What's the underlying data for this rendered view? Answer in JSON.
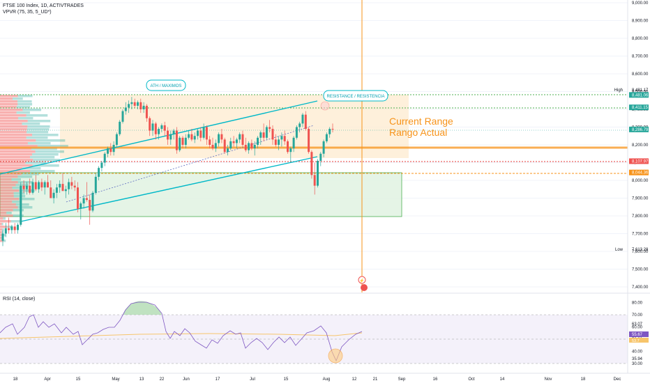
{
  "header": {
    "symbol_line": "FTSE 100 Index, 1D, ACTIVTRADES",
    "indicator_line": "VPVR (75, 35, 5_UD*)"
  },
  "rsi": {
    "label": "RSI (14, close)"
  },
  "annotations": {
    "ath": "ATH / MAXIMOS",
    "resistance": "RESISTANCE / RESISTENCIA",
    "current_range_en": "Current Range",
    "current_range_es": "Rango Actual"
  },
  "price_axis": {
    "ticks": [
      "9,000.00",
      "8,900.00",
      "8,800.00",
      "8,700.00",
      "8,600.00",
      "8,500.00",
      "8,400.00",
      "8,300.00",
      "8,200.00",
      "8,100.00",
      "8,000.00",
      "7,900.00",
      "7,800.00",
      "7,700.00",
      "7,600.00",
      "7,500.00",
      "7,400.00"
    ],
    "high_label": "High",
    "high_value": "8,481.17",
    "low_label": "Low",
    "low_value": "7,613.28",
    "badges": [
      "8,481.06",
      "8,411.15",
      "8,286.79",
      "8,107.97",
      "8,044.36"
    ]
  },
  "rsi_axis": {
    "ticks": [
      "80.00",
      "70.00",
      "60.00",
      "50.00",
      "40.00",
      "30.00"
    ],
    "labels": [
      "63.07",
      "55.67",
      "53.7",
      "35.94"
    ]
  },
  "time_axis": [
    "18",
    "Apr",
    "15",
    "May",
    "13",
    "22",
    "Jun",
    "17",
    "Jul",
    "15",
    "Aug",
    "12",
    "21",
    "Sep",
    "16",
    "Oct",
    "14",
    "Nov",
    "18",
    "Dec"
  ],
  "colors": {
    "up": "#26a69a",
    "down": "#ef5350",
    "trend": "#00b8c8",
    "orange": "#f7931a",
    "green_level": "#4caf50",
    "red_level": "#e53935",
    "range_fill": "#fde9cc",
    "lower_box_fill": "#e2f3e3",
    "rsi_fill": "#ede7f6"
  },
  "chart_data": {
    "type": "candlestick",
    "title": "FTSE 100 Index, 1D, ACTIVTRADES",
    "ylim": [
      7380,
      9010
    ],
    "candles": [
      [
        7660,
        7720,
        7630,
        7700
      ],
      [
        7700,
        7760,
        7680,
        7730
      ],
      [
        7730,
        7790,
        7700,
        7720
      ],
      [
        7720,
        7750,
        7700,
        7740
      ],
      [
        7740,
        7760,
        7700,
        7720
      ],
      [
        7720,
        7760,
        7700,
        7750
      ],
      [
        7750,
        7990,
        7740,
        7970
      ],
      [
        7970,
        8000,
        7930,
        7950
      ],
      [
        7950,
        7990,
        7920,
        7970
      ],
      [
        7970,
        8010,
        7920,
        7930
      ],
      [
        7930,
        8010,
        7920,
        7990
      ],
      [
        7990,
        8030,
        7940,
        7950
      ],
      [
        7950,
        8000,
        7930,
        7990
      ],
      [
        7990,
        8010,
        7940,
        7960
      ],
      [
        7960,
        8000,
        7920,
        7990
      ],
      [
        7990,
        8030,
        7960,
        7960
      ],
      [
        7960,
        8000,
        7910,
        7900
      ],
      [
        7900,
        7950,
        7870,
        7930
      ],
      [
        7930,
        7980,
        7900,
        7960
      ],
      [
        7960,
        8000,
        7930,
        7980
      ],
      [
        7980,
        8040,
        7950,
        7940
      ],
      [
        7940,
        7970,
        7900,
        7950
      ],
      [
        7950,
        8010,
        7920,
        7990
      ],
      [
        7990,
        8020,
        7950,
        7970
      ],
      [
        7970,
        8000,
        7940,
        7960
      ],
      [
        7960,
        7990,
        7820,
        7840
      ],
      [
        7840,
        7880,
        7780,
        7870
      ],
      [
        7870,
        7920,
        7840,
        7900
      ],
      [
        7900,
        7990,
        7880,
        7890
      ],
      [
        7890,
        7920,
        7750,
        7830
      ],
      [
        7830,
        7940,
        7820,
        7930
      ],
      [
        7930,
        8040,
        7920,
        8020
      ],
      [
        8020,
        8080,
        8000,
        8070
      ],
      [
        8070,
        8110,
        8050,
        8100
      ],
      [
        8100,
        8160,
        8080,
        8150
      ],
      [
        8150,
        8190,
        8130,
        8180
      ],
      [
        8180,
        8210,
        8140,
        8160
      ],
      [
        8160,
        8220,
        8140,
        8200
      ],
      [
        8200,
        8270,
        8190,
        8260
      ],
      [
        8260,
        8340,
        8250,
        8330
      ],
      [
        8330,
        8400,
        8320,
        8390
      ],
      [
        8390,
        8440,
        8370,
        8410
      ],
      [
        8410,
        8450,
        8380,
        8430
      ],
      [
        8430,
        8470,
        8400,
        8440
      ],
      [
        8440,
        8460,
        8410,
        8420
      ],
      [
        8420,
        8450,
        8400,
        8440
      ],
      [
        8440,
        8460,
        8380,
        8400
      ],
      [
        8400,
        8440,
        8380,
        8420
      ],
      [
        8420,
        8430,
        8330,
        8350
      ],
      [
        8350,
        8360,
        8250,
        8280
      ],
      [
        8280,
        8340,
        8250,
        8320
      ],
      [
        8320,
        8330,
        8230,
        8260
      ],
      [
        8260,
        8300,
        8230,
        8290
      ],
      [
        8290,
        8320,
        8270,
        8310
      ],
      [
        8310,
        8330,
        8250,
        8280
      ],
      [
        8280,
        8300,
        8200,
        8230
      ],
      [
        8230,
        8280,
        8200,
        8260
      ],
      [
        8260,
        8290,
        8230,
        8280
      ],
      [
        8280,
        8300,
        8150,
        8170
      ],
      [
        8170,
        8250,
        8160,
        8240
      ],
      [
        8240,
        8250,
        8180,
        8200
      ],
      [
        8200,
        8260,
        8180,
        8240
      ],
      [
        8240,
        8280,
        8230,
        8260
      ],
      [
        8260,
        8290,
        8220,
        8230
      ],
      [
        8230,
        8270,
        8210,
        8250
      ],
      [
        8250,
        8290,
        8230,
        8280
      ],
      [
        8280,
        8300,
        8220,
        8240
      ],
      [
        8240,
        8320,
        8230,
        8300
      ],
      [
        8300,
        8310,
        8200,
        8230
      ],
      [
        8230,
        8250,
        8180,
        8200
      ],
      [
        8200,
        8240,
        8170,
        8180
      ],
      [
        8180,
        8230,
        8160,
        8210
      ],
      [
        8210,
        8270,
        8190,
        8260
      ],
      [
        8260,
        8290,
        8210,
        8230
      ],
      [
        8230,
        8240,
        8150,
        8160
      ],
      [
        8160,
        8200,
        8140,
        8180
      ],
      [
        8180,
        8240,
        8170,
        8220
      ],
      [
        8220,
        8250,
        8190,
        8210
      ],
      [
        8210,
        8240,
        8180,
        8230
      ],
      [
        8230,
        8270,
        8210,
        8260
      ],
      [
        8260,
        8280,
        8190,
        8200
      ],
      [
        8200,
        8240,
        8160,
        8170
      ],
      [
        8170,
        8220,
        8150,
        8210
      ],
      [
        8210,
        8230,
        8170,
        8180
      ],
      [
        8180,
        8220,
        8140,
        8200
      ],
      [
        8200,
        8250,
        8180,
        8240
      ],
      [
        8240,
        8280,
        8200,
        8270
      ],
      [
        8270,
        8320,
        8220,
        8240
      ],
      [
        8240,
        8310,
        8230,
        8300
      ],
      [
        8300,
        8340,
        8270,
        8290
      ],
      [
        8290,
        8310,
        8200,
        8230
      ],
      [
        8230,
        8260,
        8190,
        8200
      ],
      [
        8200,
        8250,
        8170,
        8230
      ],
      [
        8230,
        8270,
        8190,
        8250
      ],
      [
        8250,
        8280,
        8200,
        8220
      ],
      [
        8220,
        8230,
        8150,
        8160
      ],
      [
        8160,
        8190,
        8100,
        8180
      ],
      [
        8180,
        8250,
        8160,
        8240
      ],
      [
        8240,
        8310,
        8230,
        8300
      ],
      [
        8300,
        8330,
        8270,
        8320
      ],
      [
        8320,
        8380,
        8300,
        8370
      ],
      [
        8370,
        8390,
        8280,
        8290
      ],
      [
        8290,
        8300,
        8150,
        8160
      ],
      [
        8160,
        8170,
        8010,
        8030
      ],
      [
        8030,
        8100,
        7920,
        7970
      ],
      [
        7970,
        8120,
        7960,
        8110
      ],
      [
        8110,
        8160,
        8080,
        8150
      ],
      [
        8150,
        8230,
        8130,
        8220
      ],
      [
        8220,
        8270,
        8210,
        8260
      ],
      [
        8260,
        8300,
        8240,
        8290
      ],
      [
        8290,
        8320,
        8270,
        8287
      ]
    ]
  }
}
